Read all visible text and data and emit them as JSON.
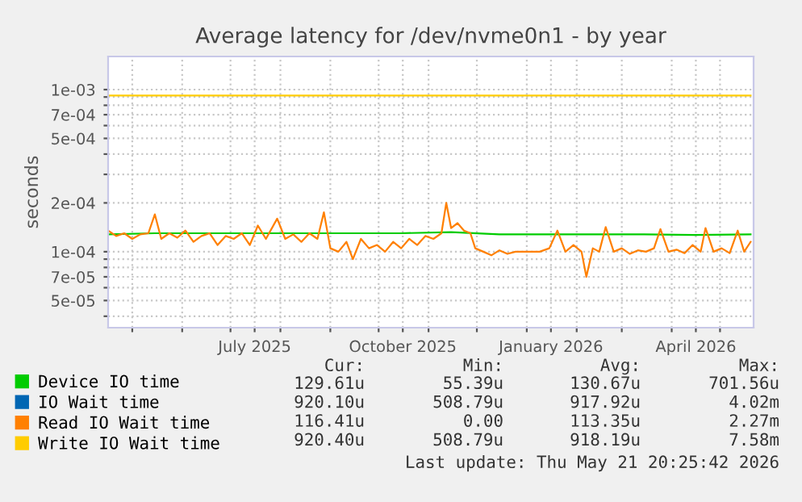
{
  "chart_data": {
    "type": "line",
    "title": "Average latency for /dev/nvme0n1 - by year",
    "ylabel": "seconds",
    "log": "y",
    "grid": true,
    "legend": "bottom",
    "line_style": "solid",
    "marker": "none",
    "xlim": [
      "2025-04-16",
      "2026-05-21T20:25"
    ],
    "xticks": [
      {
        "value": "2025-05-01",
        "label": null
      },
      {
        "value": "2025-06-01",
        "label": null
      },
      {
        "value": "2025-07-01",
        "label": null
      },
      {
        "value": "2025-07-16",
        "label": "July 2025"
      },
      {
        "value": "2025-08-01",
        "label": null
      },
      {
        "value": "2025-09-01",
        "label": null
      },
      {
        "value": "2025-10-01",
        "label": null
      },
      {
        "value": "2025-10-16",
        "label": "October 2025"
      },
      {
        "value": "2025-11-01",
        "label": null
      },
      {
        "value": "2025-12-01",
        "label": null
      },
      {
        "value": "2026-01-01",
        "label": null
      },
      {
        "value": "2026-01-16",
        "label": "January 2026"
      },
      {
        "value": "2026-02-01",
        "label": null
      },
      {
        "value": "2026-03-01",
        "label": null
      },
      {
        "value": "2026-04-01",
        "label": null
      },
      {
        "value": "2026-04-16",
        "label": "April 2026"
      },
      {
        "value": "2026-05-01",
        "label": null
      }
    ],
    "ylim": [
      3.4e-05,
      0.0016
    ],
    "yticks": [
      {
        "value": 4e-05,
        "label": null
      },
      {
        "value": 5e-05,
        "label": "5e-05"
      },
      {
        "value": 6e-05,
        "label": null
      },
      {
        "value": 7e-05,
        "label": "7e-05"
      },
      {
        "value": 8e-05,
        "label": null
      },
      {
        "value": 9e-05,
        "label": null
      },
      {
        "value": 0.0001,
        "label": "1e-04"
      },
      {
        "value": 0.0002,
        "label": "2e-04"
      },
      {
        "value": 0.0003,
        "label": null
      },
      {
        "value": 0.0004,
        "label": null
      },
      {
        "value": 0.0005,
        "label": "5e-04"
      },
      {
        "value": 0.0006,
        "label": null
      },
      {
        "value": 0.0007,
        "label": "7e-04"
      },
      {
        "value": 0.0008,
        "label": null
      },
      {
        "value": 0.0009,
        "label": null
      },
      {
        "value": 0.001,
        "label": "1e-03"
      }
    ],
    "series": [
      {
        "name": "Device IO time",
        "color": "#00cc00",
        "x": [
          "2025-04-16",
          "2025-05-15",
          "2025-06-15",
          "2025-07-15",
          "2025-08-15",
          "2025-09-15",
          "2025-10-15",
          "2025-11-15",
          "2025-12-15",
          "2026-01-15",
          "2026-02-15",
          "2026-03-15",
          "2026-04-15",
          "2026-05-20"
        ],
        "values": [
          0.000128,
          0.00013,
          0.00013,
          0.00013,
          0.00013,
          0.00013,
          0.00013,
          0.000132,
          0.000128,
          0.000128,
          0.000128,
          0.000128,
          0.000127,
          0.000128
        ]
      },
      {
        "name": "IO Wait time",
        "color": "#0066b3"
      },
      {
        "name": "Read IO Wait time",
        "color": "#ff8000",
        "x": [
          "2025-04-16",
          "2025-04-21",
          "2025-04-26",
          "2025-05-01",
          "2025-05-06",
          "2025-05-11",
          "2025-05-15",
          "2025-05-19",
          "2025-05-24",
          "2025-05-29",
          "2025-06-03",
          "2025-06-08",
          "2025-06-13",
          "2025-06-18",
          "2025-06-23",
          "2025-06-28",
          "2025-07-03",
          "2025-07-08",
          "2025-07-13",
          "2025-07-18",
          "2025-07-23",
          "2025-07-30",
          "2025-08-04",
          "2025-08-09",
          "2025-08-14",
          "2025-08-19",
          "2025-08-24",
          "2025-08-28",
          "2025-09-01",
          "2025-09-06",
          "2025-09-11",
          "2025-09-15",
          "2025-09-20",
          "2025-09-25",
          "2025-09-30",
          "2025-10-05",
          "2025-10-10",
          "2025-10-15",
          "2025-10-20",
          "2025-10-25",
          "2025-10-30",
          "2025-11-04",
          "2025-11-09",
          "2025-11-12",
          "2025-11-15",
          "2025-11-19",
          "2025-11-23",
          "2025-11-27",
          "2025-11-30",
          "2025-12-05",
          "2025-12-10",
          "2025-12-15",
          "2025-12-20",
          "2025-12-25",
          "2025-12-30",
          "2026-01-04",
          "2026-01-09",
          "2026-01-15",
          "2026-01-20",
          "2026-01-25",
          "2026-01-30",
          "2026-02-04",
          "2026-02-07",
          "2026-02-11",
          "2026-02-15",
          "2026-02-19",
          "2026-02-24",
          "2026-03-01",
          "2026-03-06",
          "2026-03-11",
          "2026-03-16",
          "2026-03-21",
          "2026-03-25",
          "2026-03-30",
          "2026-04-04",
          "2026-04-09",
          "2026-04-14",
          "2026-04-19",
          "2026-04-22",
          "2026-04-27",
          "2026-05-02",
          "2026-05-07",
          "2026-05-12",
          "2026-05-16",
          "2026-05-20"
        ],
        "values": [
          0.000135,
          0.000125,
          0.00013,
          0.00012,
          0.000128,
          0.00013,
          0.00017,
          0.00012,
          0.00013,
          0.000122,
          0.000135,
          0.000115,
          0.000125,
          0.00013,
          0.00011,
          0.000125,
          0.00012,
          0.00013,
          0.00011,
          0.000145,
          0.00012,
          0.00016,
          0.00012,
          0.000128,
          0.000115,
          0.00013,
          0.00012,
          0.000175,
          0.000105,
          0.0001,
          0.000115,
          9e-05,
          0.00012,
          0.000105,
          0.00011,
          0.0001,
          0.000115,
          0.000105,
          0.00012,
          0.00011,
          0.000125,
          0.00012,
          0.00013,
          0.0002,
          0.00014,
          0.00015,
          0.000135,
          0.00013,
          0.000105,
          0.0001,
          9.5e-05,
          0.000102,
          9.7e-05,
          0.0001,
          0.0001,
          0.0001,
          0.0001,
          0.000105,
          0.000135,
          0.0001,
          0.00011,
          0.0001,
          7e-05,
          0.000105,
          0.0001,
          0.000142,
          0.0001,
          0.000105,
          9.7e-05,
          0.000102,
          0.0001,
          0.000105,
          0.000138,
          0.0001,
          0.000103,
          9.8e-05,
          0.00011,
          0.0001,
          0.00014,
          0.0001,
          0.000105,
          9.8e-05,
          0.000135,
          0.0001,
          0.000115
        ]
      },
      {
        "name": "Write IO Wait time",
        "color": "#ffcc00",
        "x": [
          "2025-04-16",
          "2025-05-15",
          "2025-06-15",
          "2025-07-15",
          "2025-08-15",
          "2025-09-15",
          "2025-10-15",
          "2025-11-15",
          "2025-12-15",
          "2026-01-15",
          "2026-02-15",
          "2026-03-15",
          "2026-04-15",
          "2026-05-20"
        ],
        "values": [
          0.00092,
          0.00092,
          0.00092,
          0.00092,
          0.00092,
          0.00092,
          0.00092,
          0.00092,
          0.00092,
          0.00092,
          0.00092,
          0.00092,
          0.00092,
          0.00092
        ]
      }
    ],
    "annotations": [
      "Cur:",
      "Min:",
      "Avg:",
      "Max:",
      "129.61u",
      "55.39u",
      "130.67u",
      "701.56u",
      "920.10u",
      "508.79u",
      "917.92u",
      "4.02m",
      "116.41u",
      "0.00",
      "113.35u",
      "2.27m",
      "920.40u",
      "508.79u",
      "918.19u",
      "7.58m",
      "Last update: Thu May 21 20:25:42 2026"
    ]
  }
}
